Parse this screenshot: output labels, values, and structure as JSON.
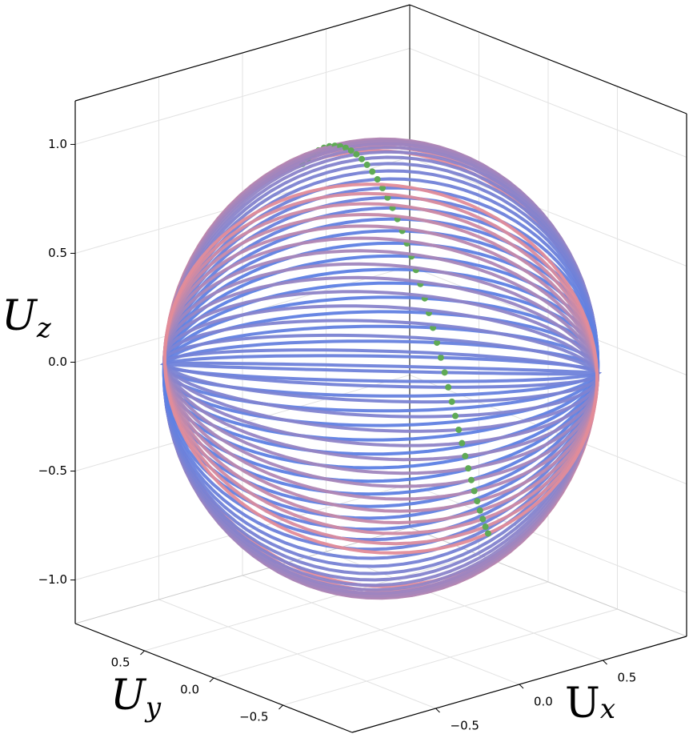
{
  "chart_data": {
    "type": "surface3d",
    "xlabel": {
      "text": "U",
      "subscript": "x"
    },
    "ylabel": {
      "text": "U",
      "subscript": "y"
    },
    "zlabel": {
      "text": "U",
      "subscript": "z"
    },
    "xlim": [
      -1,
      1
    ],
    "ylim": [
      -1,
      1
    ],
    "zlim": [
      -1.2,
      1.2
    ],
    "xticks": [
      {
        "value": -0.5,
        "label": "−0.5"
      },
      {
        "value": 0,
        "label": "0.0"
      },
      0.5
    ],
    "yticks": [
      {
        "value": -0.5,
        "label": "−0.5"
      },
      {
        "value": 0,
        "label": "0.0"
      },
      0.5
    ],
    "zticks": [
      {
        "value": -1,
        "label": "−1.0"
      },
      {
        "value": -0.5,
        "label": "−0.5"
      },
      {
        "value": 0,
        "label": "0.0"
      },
      0.5,
      {
        "value": 1,
        "label": "1.0"
      }
    ],
    "grid": true
  }
}
